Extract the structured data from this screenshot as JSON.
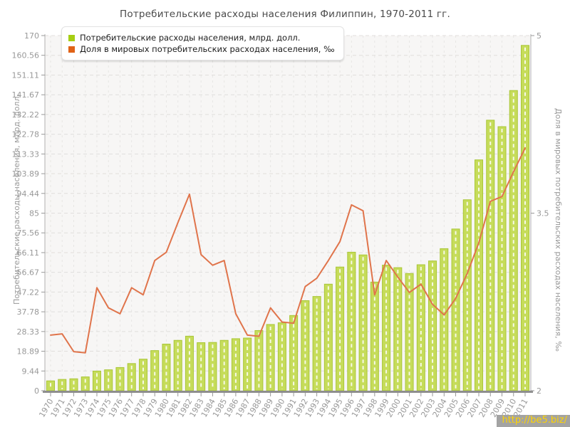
{
  "title": "Потребительские расходы населения Филиппин, 1970-2011 гг.",
  "legend": {
    "items": [
      {
        "label": "Потребительские расходы населения, млрд. долл.",
        "swatch_color": "#a6ce13"
      },
      {
        "label": "Доля в мировых потребительских расходах населения, ‰",
        "swatch_color": "#e06216"
      }
    ]
  },
  "watermark": {
    "text": "http://be5.biz/",
    "text_color": "#ffd400",
    "bg_color": "#a3a3a3"
  },
  "colors": {
    "bar_fill": "#c6dc5a",
    "bar_edge": "#a9c636",
    "bar_stripe": "#ffffff",
    "line": "#e0744b",
    "axis_text": "#999999",
    "axis_line": "#b0b0b0",
    "bottom_axis": "#8e8e8e",
    "grid_h": "#e0dedc",
    "grid_v": "#e7e6e4",
    "plot_bg": "#f7f6f5",
    "title_text": "#4a4a4a"
  },
  "chart_data": {
    "type": "bar+line",
    "title": "Потребительские расходы населения Филиппин, 1970-2011 гг.",
    "grid": true,
    "legend_position": "top-left",
    "categories": [
      "1970",
      "1971",
      "1972",
      "1973",
      "1974",
      "1975",
      "1976",
      "1977",
      "1978",
      "1979",
      "1980",
      "1981",
      "1982",
      "1983",
      "1984",
      "1985",
      "1986",
      "1987",
      "1988",
      "1989",
      "1990",
      "1991",
      "1992",
      "1993",
      "1994",
      "1995",
      "1996",
      "1997",
      "1998",
      "1999",
      "2000",
      "2001",
      "2002",
      "2003",
      "2004",
      "2005",
      "2006",
      "2007",
      "2008",
      "2009",
      "2010",
      "2011"
    ],
    "series": [
      {
        "name": "Потребительские расходы населения, млрд. долл.",
        "type": "bar",
        "axis": "left",
        "values": [
          4.7,
          5.4,
          5.7,
          6.6,
          9.4,
          10,
          11.1,
          13,
          15.1,
          19.2,
          22.3,
          24.1,
          26.1,
          23,
          23.1,
          24.1,
          24.9,
          25.2,
          28.8,
          31.7,
          32.5,
          36,
          43.1,
          45.1,
          51,
          59.2,
          66.3,
          65,
          52,
          60.1,
          58.9,
          56.1,
          60.3,
          62.1,
          68,
          77.4,
          91.4,
          110.5,
          129.5,
          126.4,
          143.7,
          165.3
        ]
      },
      {
        "name": "Доля в мировых потребительских расходах населения, ‰",
        "type": "line",
        "axis": "right",
        "values": [
          2.47,
          2.48,
          2.33,
          2.32,
          2.87,
          2.7,
          2.65,
          2.87,
          2.81,
          3.1,
          3.17,
          3.42,
          3.66,
          3.15,
          3.06,
          3.1,
          2.65,
          2.47,
          2.46,
          2.7,
          2.58,
          2.57,
          2.88,
          2.95,
          3.1,
          3.26,
          3.57,
          3.52,
          2.81,
          3.1,
          2.96,
          2.83,
          2.9,
          2.73,
          2.64,
          2.78,
          2.99,
          3.25,
          3.6,
          3.64,
          3.85,
          4.05
        ]
      }
    ],
    "left_axis": {
      "label": "Потребительские расходы населения, млрд. долл.",
      "min": 0,
      "max": 170,
      "tick_labels": [
        "0",
        "9.44",
        "18.89",
        "28.33",
        "37.78",
        "47.22",
        "56.67",
        "66.11",
        "75.56",
        "85",
        "94.44",
        "103.89",
        "113.33",
        "122.78",
        "132.22",
        "141.67",
        "151.11",
        "160.56",
        "170"
      ],
      "tick_values": [
        0,
        9.44,
        18.89,
        28.33,
        37.78,
        47.22,
        56.67,
        66.11,
        75.56,
        85,
        94.44,
        103.89,
        113.33,
        122.78,
        132.22,
        141.67,
        151.11,
        160.56,
        170
      ]
    },
    "right_axis": {
      "label": "Доля в мировых потребительских расходах населения, ‰",
      "min": 2,
      "max": 5,
      "tick_labels": [
        "2",
        "3.5",
        "5"
      ],
      "tick_values": [
        2,
        3.5,
        5
      ]
    }
  }
}
